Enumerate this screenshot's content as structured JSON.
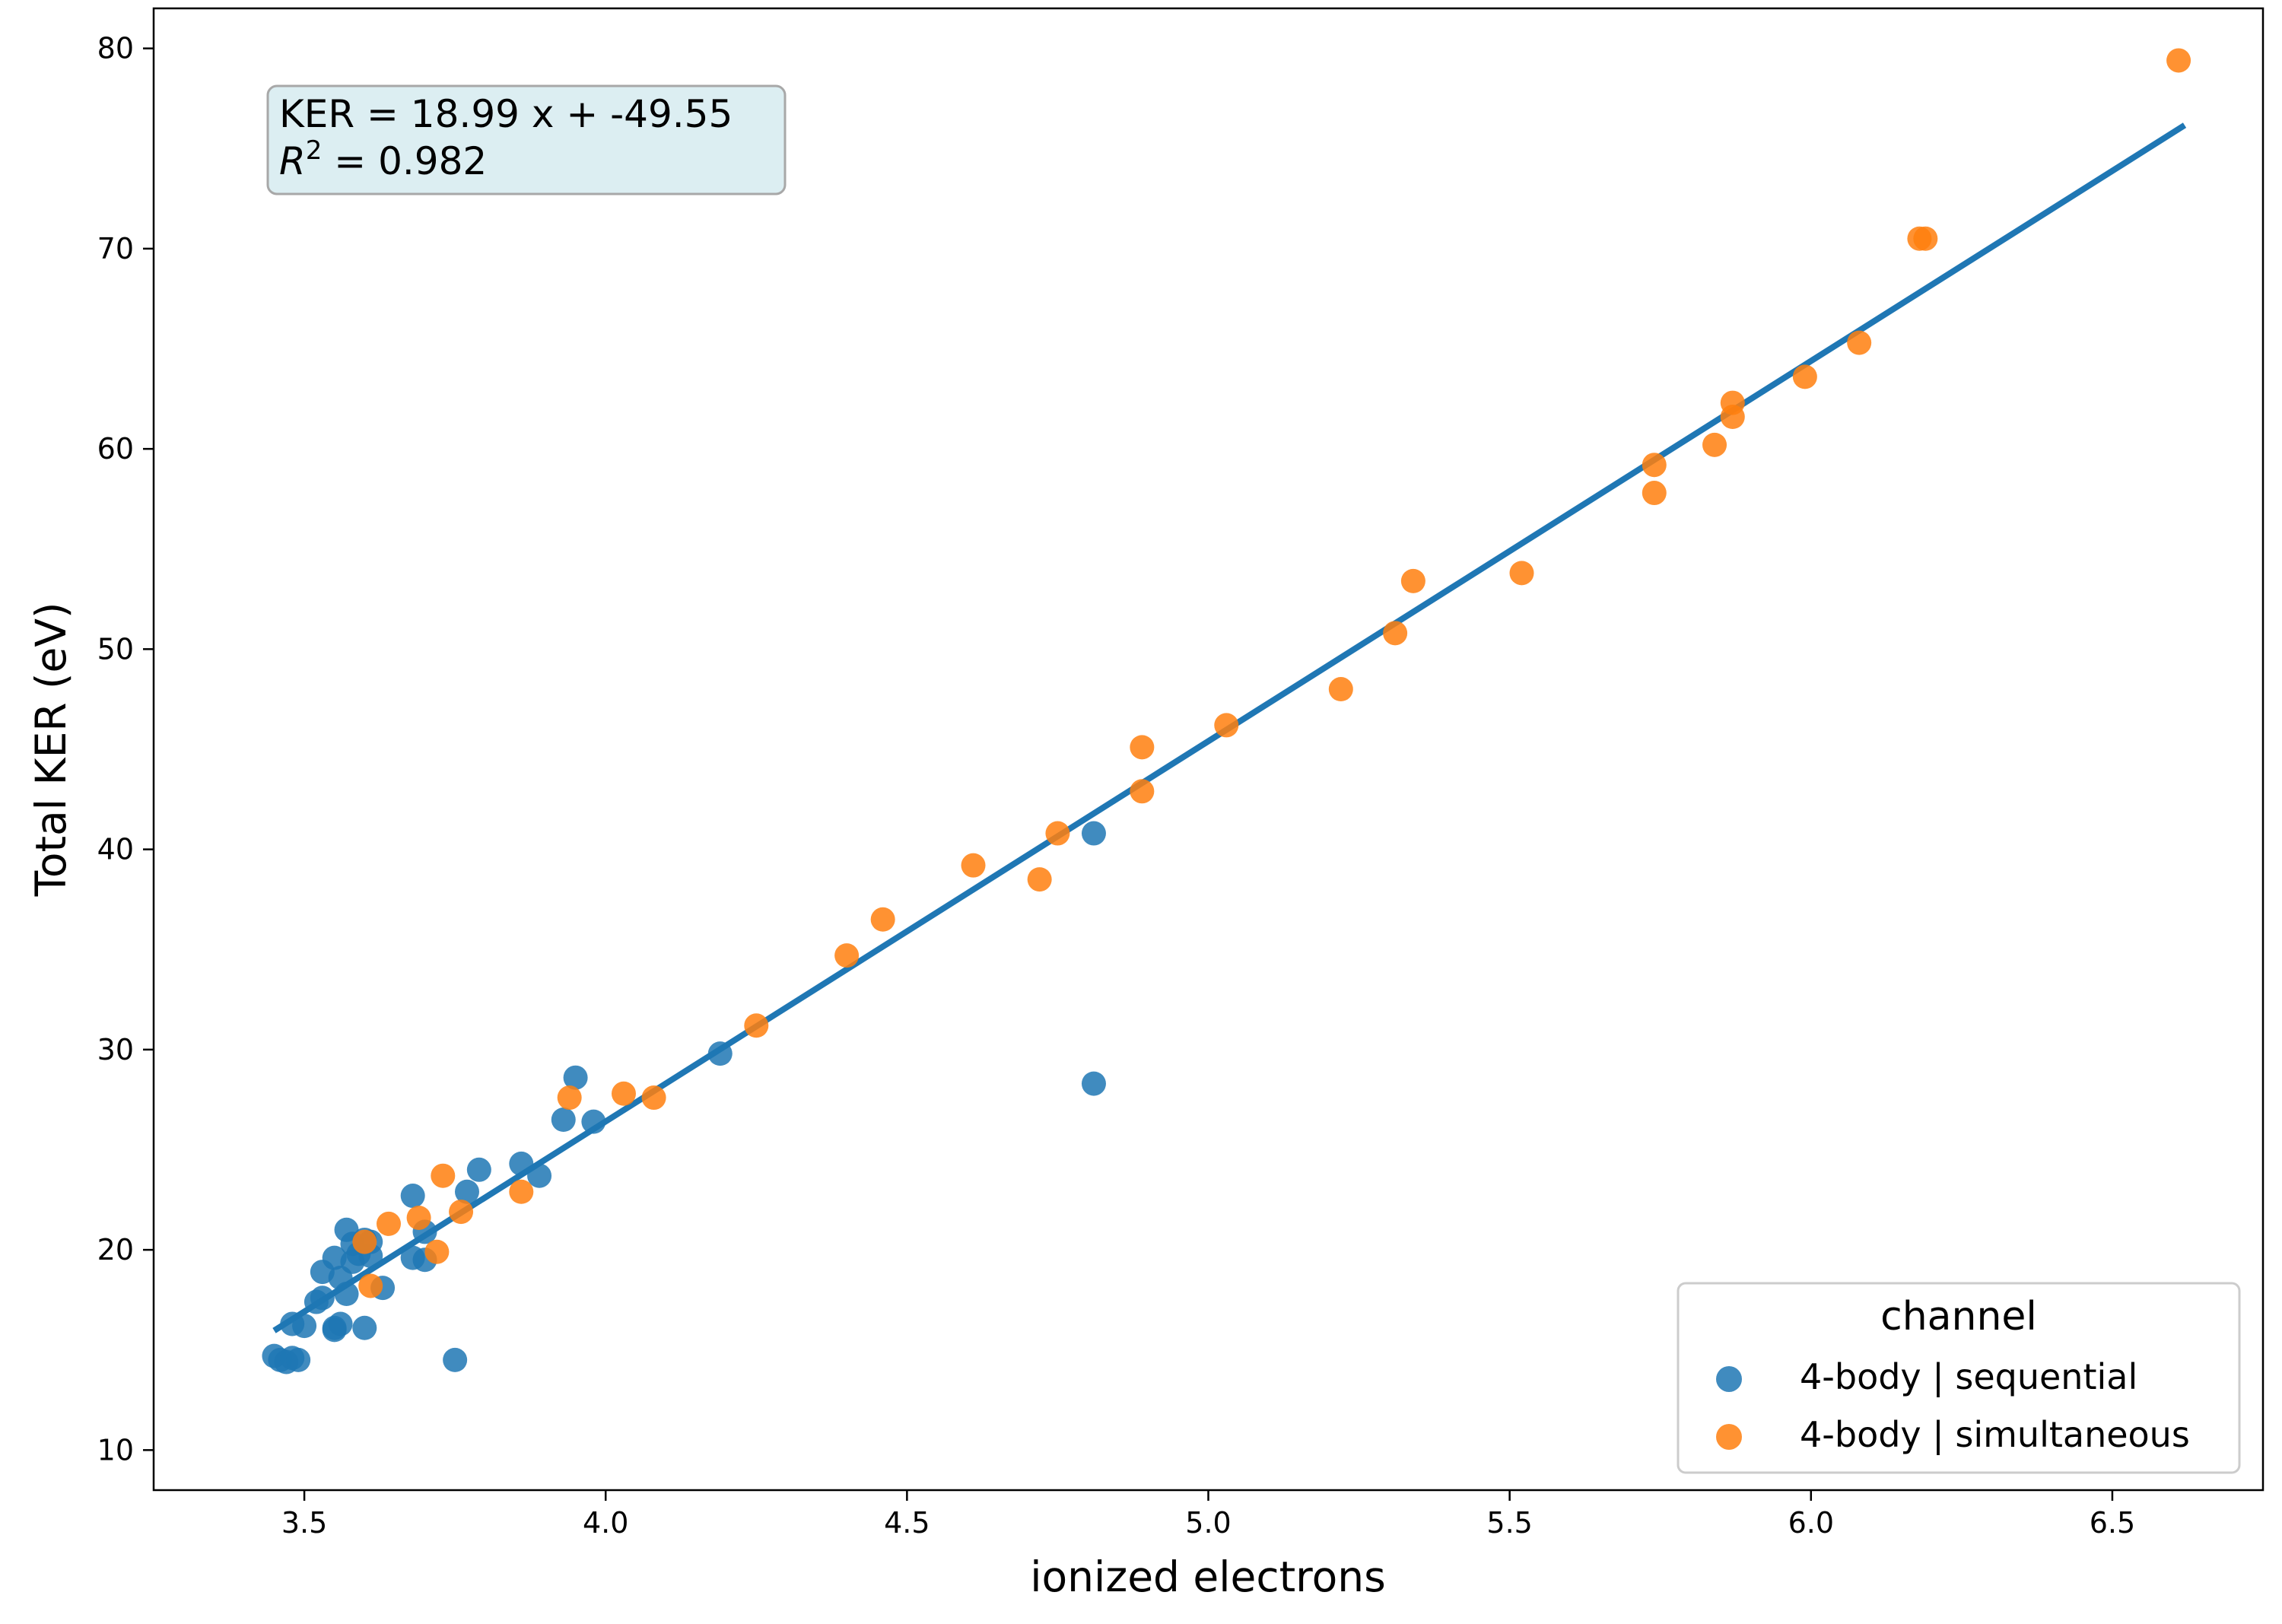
{
  "colors": {
    "sequential": "#1f77b4",
    "simultaneous": "#ff7f0e",
    "fit_line": "#1f77b4",
    "annotation_fill": "#dceef2",
    "annotation_edge": "#a8a8a8"
  },
  "chart_data": {
    "type": "scatter",
    "xlabel": "ionized electrons",
    "ylabel": "Total KER (eV)",
    "xlim": [
      3.25,
      6.75
    ],
    "ylim": [
      8,
      82
    ],
    "x_ticks": [
      3.5,
      4.0,
      4.5,
      5.0,
      5.5,
      6.0,
      6.5
    ],
    "x_tick_labels": [
      "3.5",
      "4.0",
      "4.5",
      "5.0",
      "5.5",
      "6.0",
      "6.5"
    ],
    "y_ticks": [
      10,
      20,
      30,
      40,
      50,
      60,
      70,
      80
    ],
    "y_tick_labels": [
      "10",
      "20",
      "30",
      "40",
      "50",
      "60",
      "70",
      "80"
    ],
    "grid": false,
    "legend": {
      "title": "channel",
      "placement": "lower-right"
    },
    "annotation": {
      "line1": "KER = 18.99 x + -49.55",
      "r2_symbol": "R",
      "r2_superscript": "2",
      "r2_value": " = 0.982"
    },
    "fit": {
      "slope": 18.99,
      "intercept": -49.55,
      "x_range": [
        3.45,
        6.62
      ]
    },
    "series": [
      {
        "name": "4-body | sequential",
        "points": [
          [
            3.45,
            14.7
          ],
          [
            3.46,
            14.5
          ],
          [
            3.47,
            14.4
          ],
          [
            3.48,
            14.6
          ],
          [
            3.49,
            14.5
          ],
          [
            3.48,
            16.3
          ],
          [
            3.5,
            16.2
          ],
          [
            3.52,
            17.4
          ],
          [
            3.53,
            17.6
          ],
          [
            3.53,
            18.9
          ],
          [
            3.55,
            16.1
          ],
          [
            3.55,
            16.0
          ],
          [
            3.56,
            16.3
          ],
          [
            3.55,
            19.6
          ],
          [
            3.56,
            18.6
          ],
          [
            3.57,
            17.8
          ],
          [
            3.57,
            21.0
          ],
          [
            3.58,
            19.4
          ],
          [
            3.58,
            20.3
          ],
          [
            3.59,
            19.8
          ],
          [
            3.6,
            16.1
          ],
          [
            3.6,
            20.5
          ],
          [
            3.61,
            19.7
          ],
          [
            3.61,
            20.4
          ],
          [
            3.63,
            18.1
          ],
          [
            3.68,
            19.6
          ],
          [
            3.68,
            22.7
          ],
          [
            3.7,
            19.5
          ],
          [
            3.7,
            20.9
          ],
          [
            3.75,
            14.5
          ],
          [
            3.77,
            22.9
          ],
          [
            3.79,
            24.0
          ],
          [
            3.86,
            24.3
          ],
          [
            3.89,
            23.7
          ],
          [
            3.93,
            26.5
          ],
          [
            3.95,
            28.6
          ],
          [
            3.98,
            26.4
          ],
          [
            4.19,
            29.8
          ],
          [
            4.81,
            40.8
          ],
          [
            4.81,
            28.3
          ]
        ]
      },
      {
        "name": "4-body | simultaneous",
        "points": [
          [
            3.6,
            20.4
          ],
          [
            3.61,
            18.2
          ],
          [
            3.64,
            21.3
          ],
          [
            3.69,
            21.6
          ],
          [
            3.72,
            19.9
          ],
          [
            3.73,
            23.7
          ],
          [
            3.76,
            21.9
          ],
          [
            3.86,
            22.9
          ],
          [
            3.94,
            27.6
          ],
          [
            4.03,
            27.8
          ],
          [
            4.08,
            27.6
          ],
          [
            4.25,
            31.2
          ],
          [
            4.4,
            34.7
          ],
          [
            4.46,
            36.5
          ],
          [
            4.61,
            39.2
          ],
          [
            4.72,
            38.5
          ],
          [
            4.75,
            40.8
          ],
          [
            4.89,
            42.9
          ],
          [
            4.89,
            45.1
          ],
          [
            5.03,
            46.2
          ],
          [
            5.22,
            48.0
          ],
          [
            5.31,
            50.8
          ],
          [
            5.34,
            53.4
          ],
          [
            5.52,
            53.8
          ],
          [
            5.74,
            59.2
          ],
          [
            5.74,
            57.8
          ],
          [
            5.84,
            60.2
          ],
          [
            5.87,
            61.6
          ],
          [
            5.87,
            62.3
          ],
          [
            5.99,
            63.6
          ],
          [
            6.08,
            65.3
          ],
          [
            6.18,
            70.5
          ],
          [
            6.19,
            70.5
          ],
          [
            6.61,
            79.4
          ]
        ]
      }
    ]
  }
}
